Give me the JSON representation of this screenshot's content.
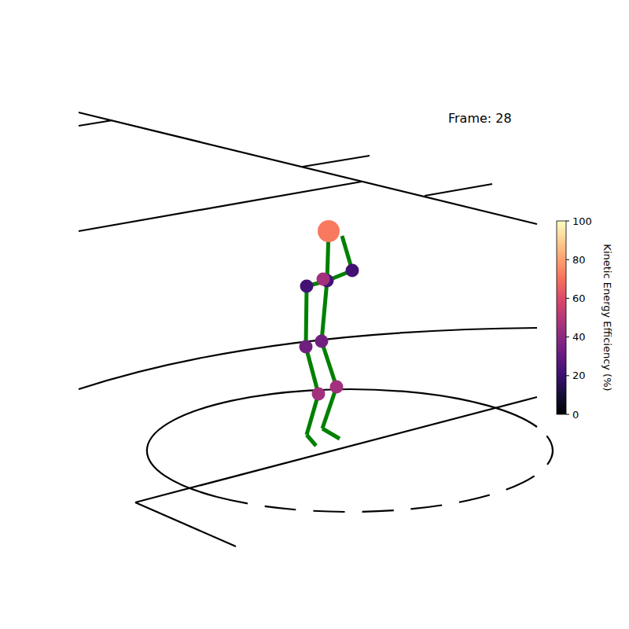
{
  "chart_data": {
    "type": "scatter",
    "title": "Frame: 28",
    "xlim": [
      -4,
      4
    ],
    "ylim": [
      -4,
      4
    ],
    "tick_labels": false,
    "points": [
      {
        "x": 0.18,
        "y": 1.06,
        "value": 72
      },
      {
        "x": 0.16,
        "y": 0.43,
        "value": 22
      },
      {
        "x": 0.11,
        "y": 0.45,
        "value": 45
      },
      {
        "x": -0.1,
        "y": 0.36,
        "value": 22
      },
      {
        "x": 0.48,
        "y": 0.56,
        "value": 22
      },
      {
        "x": 0.35,
        "y": 1.0,
        "value": null
      },
      {
        "x": -0.11,
        "y": -0.41,
        "value": 33
      },
      {
        "x": 0.09,
        "y": -0.34,
        "value": 33
      },
      {
        "x": 0.05,
        "y": -1.01,
        "value": 45
      },
      {
        "x": 0.28,
        "y": -0.92,
        "value": 45
      },
      {
        "x": -0.1,
        "y": -1.53,
        "value": null
      },
      {
        "x": 0.02,
        "y": -1.67,
        "value": null
      },
      {
        "x": 0.1,
        "y": -1.45,
        "value": null
      },
      {
        "x": 0.32,
        "y": -1.58,
        "value": null
      }
    ],
    "edges": [
      [
        0,
        1
      ],
      [
        1,
        3
      ],
      [
        3,
        6
      ],
      [
        1,
        4
      ],
      [
        4,
        5
      ],
      [
        1,
        7
      ],
      [
        6,
        8
      ],
      [
        8,
        10
      ],
      [
        10,
        11
      ],
      [
        7,
        9
      ],
      [
        9,
        12
      ],
      [
        12,
        13
      ]
    ],
    "color": "#008000",
    "colorbar": {
      "label": "Kinetic Energy Efficiency (%)",
      "range": [
        0,
        100
      ],
      "ticks": [
        0,
        20,
        40,
        60,
        80,
        100
      ]
    }
  }
}
